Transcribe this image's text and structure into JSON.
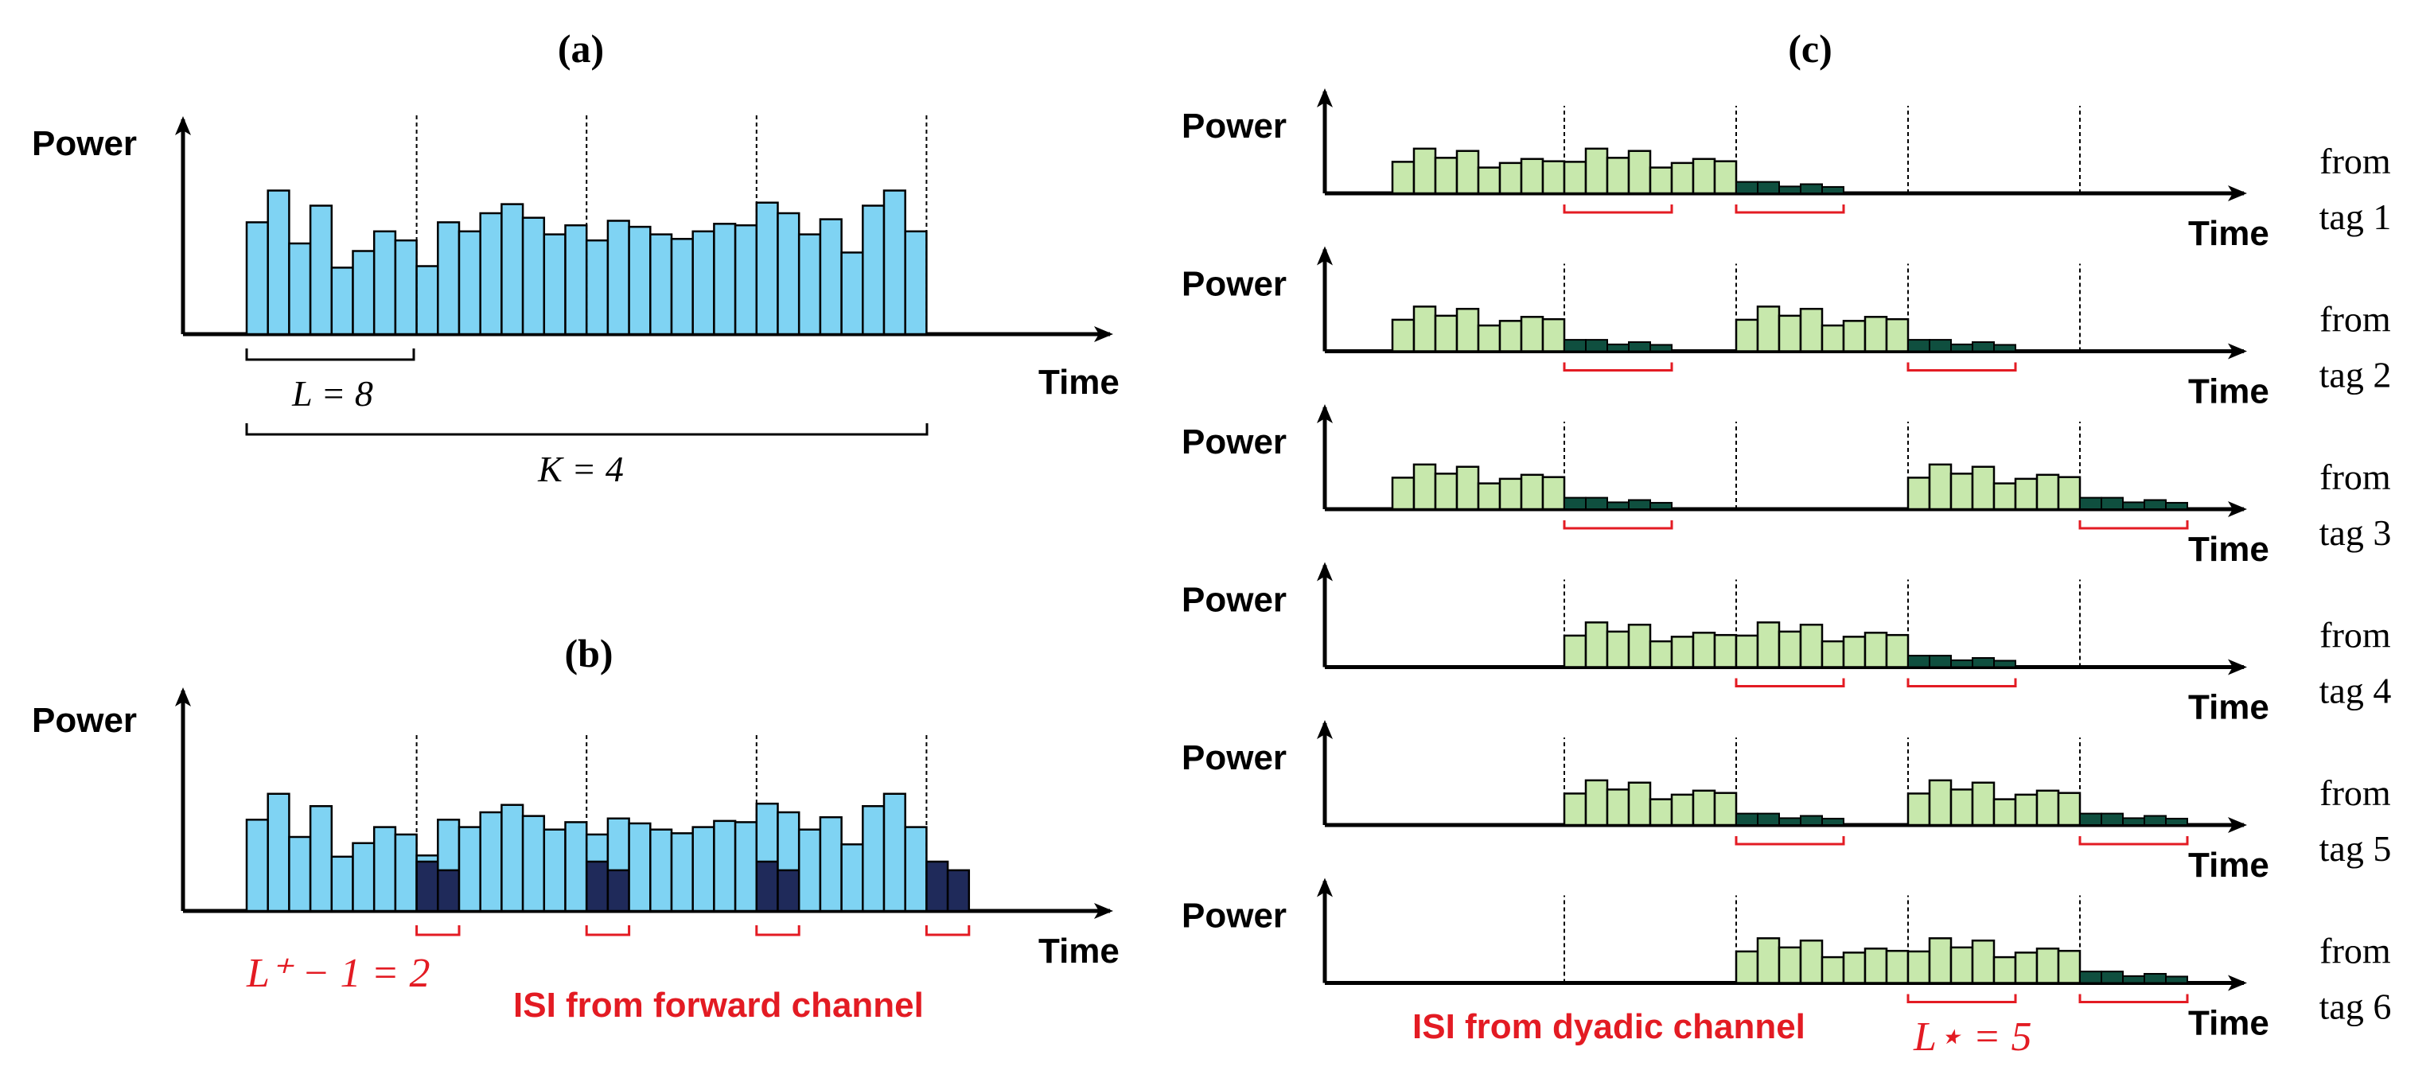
{
  "panels": {
    "a": {
      "title": "(a)",
      "y_label": "Power",
      "x_label": "Time",
      "label_L": "L = 8",
      "label_K": "K = 4"
    },
    "b": {
      "title": "(b)",
      "y_label": "Power",
      "x_label": "Time",
      "label_L_plus": "L⁺ − 1 = 2",
      "label_isi": "ISI from forward channel"
    },
    "c": {
      "title": "(c)",
      "label_isi": "ISI from dyadic channel",
      "label_L_star": "L⋆ = 5"
    }
  },
  "tags": [
    {
      "line1": "from",
      "line2": "tag 1",
      "y_label": "Power",
      "x_label": "Time"
    },
    {
      "line1": "from",
      "line2": "tag 2",
      "y_label": "Power",
      "x_label": "Time"
    },
    {
      "line1": "from",
      "line2": "tag 3",
      "y_label": "Power",
      "x_label": "Time"
    },
    {
      "line1": "from",
      "line2": "tag 4",
      "y_label": "Power",
      "x_label": "Time"
    },
    {
      "line1": "from",
      "line2": "tag 5",
      "y_label": "Power",
      "x_label": "Time"
    },
    {
      "line1": "from",
      "line2": "tag 6",
      "y_label": "Power",
      "x_label": "Time"
    }
  ],
  "chart_data": {
    "type": "bar",
    "symbols_per_block": 8,
    "blocks": 4,
    "forward_isi_taps": 2,
    "dyadic_isi_length": 5,
    "symbol_heights": [
      0.74,
      0.95,
      0.6,
      0.85,
      0.44,
      0.55,
      0.68,
      0.62,
      0.45,
      0.74,
      0.68,
      0.8,
      0.86,
      0.77,
      0.66,
      0.72,
      0.62,
      0.75,
      0.71,
      0.66,
      0.63,
      0.68,
      0.73,
      0.72,
      0.87,
      0.8,
      0.66,
      0.76,
      0.54,
      0.85,
      0.95,
      0.68
    ],
    "isi_heights_forward": [
      0.4,
      0.33
    ],
    "tag_symbol_heights": [
      0.55,
      0.78,
      0.62,
      0.74,
      0.45,
      0.53,
      0.6,
      0.56
    ],
    "tag_isi_heights": [
      0.5,
      0.5,
      0.3,
      0.4,
      0.28
    ],
    "tag_blocks": [
      {
        "tag": 1,
        "active_blocks": [
          0,
          1
        ]
      },
      {
        "tag": 2,
        "active_blocks": [
          0,
          2
        ]
      },
      {
        "tag": 3,
        "active_blocks": [
          0,
          3
        ]
      },
      {
        "tag": 4,
        "active_blocks": [
          1,
          2
        ]
      },
      {
        "tag": 5,
        "active_blocks": [
          1,
          3
        ]
      },
      {
        "tag": 6,
        "active_blocks": [
          2,
          3
        ]
      }
    ]
  }
}
